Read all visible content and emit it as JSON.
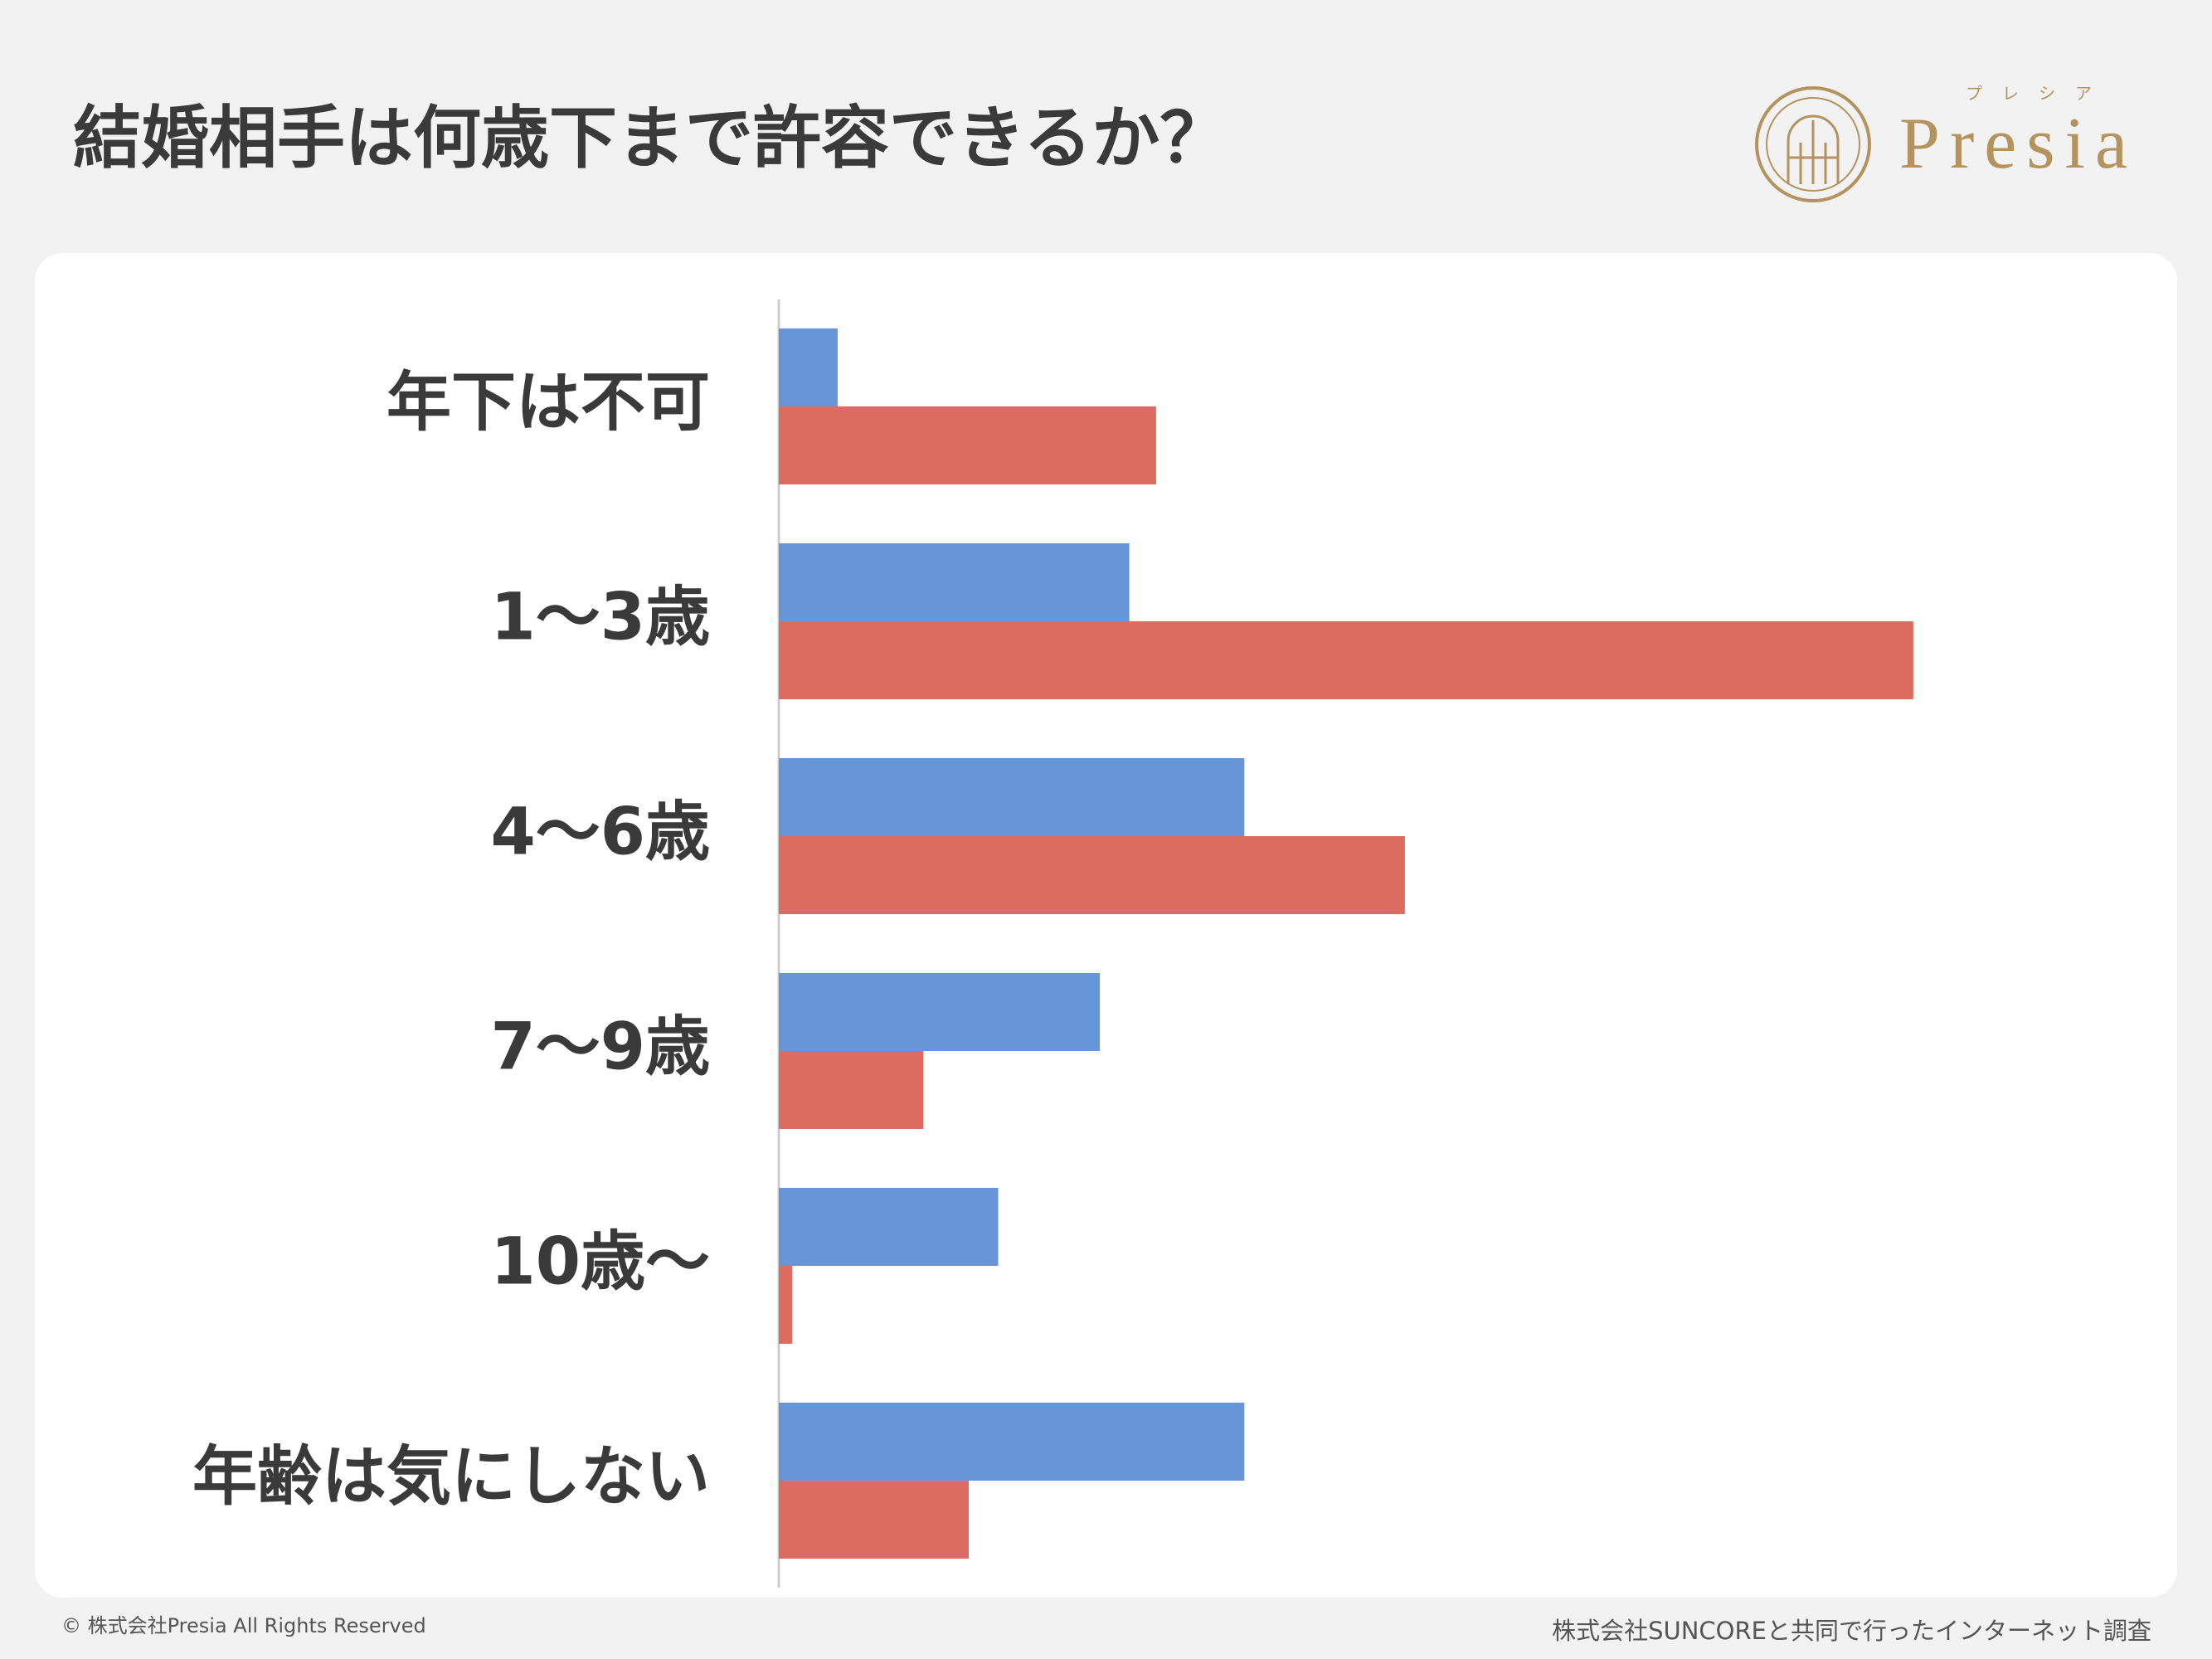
{
  "chart_data": {
    "type": "hbar",
    "title": "結婚相手は何歳下まで許容できるか？",
    "categories": [
      "年下は不可",
      "1〜3歳",
      "4〜6歳",
      "7〜9歳",
      "10歳〜",
      "年齢は気にしない"
    ],
    "series": [
      {
        "color": "#6796d8",
        "values": [
          2.2,
          13.1,
          17.4,
          12.0,
          8.2,
          17.4
        ]
      },
      {
        "color": "#dc6b60",
        "values": [
          14.1,
          42.4,
          23.4,
          5.4,
          0.5,
          7.1
        ]
      }
    ],
    "xlim": [
      0,
      50
    ]
  },
  "brand": {
    "name": "Presia",
    "kana": "プレシア"
  },
  "footer": {
    "copyright": "© 株式会社Presia All Rights Reserved",
    "source": "株式会社SUNCOREと共同で行ったインターネット調査"
  }
}
